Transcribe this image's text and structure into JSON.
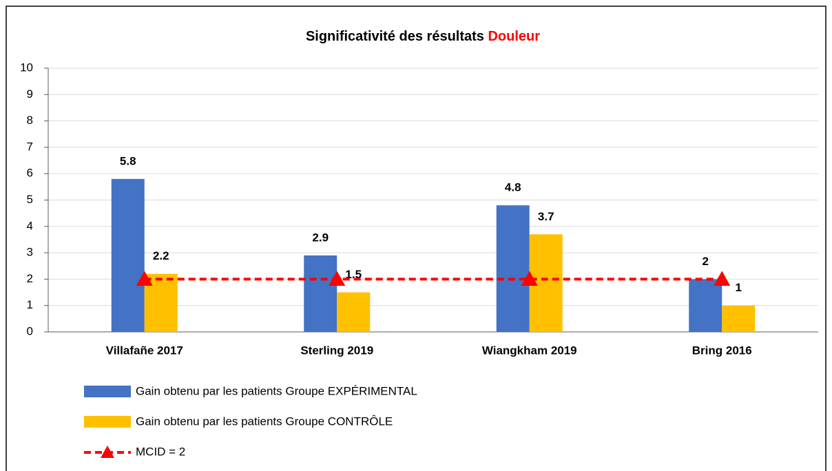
{
  "chart_data": {
    "type": "bar",
    "title": "Significativité des résultats",
    "title_highlight": "Douleur",
    "title_highlight_color": "#ff0000",
    "categories": [
      "Villafañe 2017",
      "Sterling 2019",
      "Wiangkham 2019",
      "Bring 2016"
    ],
    "series": [
      {
        "name": "Gain obtenu par les patients Groupe EXPÉRIMENTAL",
        "type": "bar",
        "color": "#4472c4",
        "label_color": "#4472c4",
        "values": [
          5.8,
          2.9,
          4.8,
          2
        ]
      },
      {
        "name": "Gain obtenu par les patients Groupe CONTRÔLE",
        "type": "bar",
        "color": "#ffc000",
        "label_color": "#bf9000",
        "values": [
          2.2,
          1.5,
          3.7,
          1
        ]
      },
      {
        "name": "MCID = 2",
        "type": "line",
        "color": "#ff0000",
        "dashed": true,
        "marker": "triangle",
        "values": [
          2,
          2,
          2,
          2
        ]
      }
    ],
    "ylim": [
      0,
      10
    ],
    "yticks": [
      0,
      1,
      2,
      3,
      4,
      5,
      6,
      7,
      8,
      9,
      10
    ],
    "grid": true,
    "legend": "bottom"
  }
}
